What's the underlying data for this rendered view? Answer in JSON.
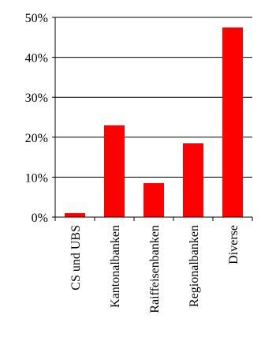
{
  "chart_data": {
    "type": "bar",
    "categories": [
      "CS und UBS",
      "Kantonalbanken",
      "Raiffeisenbanken",
      "Regionalbanken",
      "Diverse"
    ],
    "values": [
      1,
      23,
      8.5,
      18.5,
      47.5
    ],
    "y_unit": "%",
    "ylim": [
      0,
      50
    ],
    "yticks": [
      "0%",
      "10%",
      "20%",
      "30%",
      "40%",
      "50%"
    ],
    "ytick_values": [
      0,
      10,
      20,
      30,
      40,
      50
    ],
    "grid": true,
    "bar_color": "#ff0000",
    "legend": "none",
    "title": "",
    "xlabel": "",
    "ylabel": ""
  }
}
